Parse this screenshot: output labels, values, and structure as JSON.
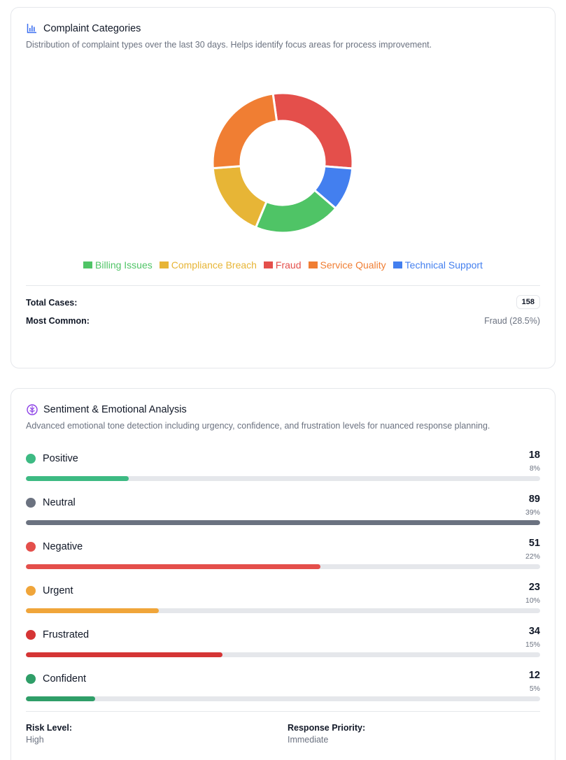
{
  "complaints": {
    "title": "Complaint Categories",
    "description": "Distribution of complaint types over the last 30 days. Helps identify focus areas for process improvement.",
    "icon": "bar-chart-icon",
    "total_label": "Total Cases:",
    "total_value": "158",
    "common_label": "Most Common:",
    "common_value": "Fraud (28.5%)",
    "legend": [
      {
        "label": "Billing Issues",
        "color": "#4fc466"
      },
      {
        "label": "Compliance Breach",
        "color": "#e7b536"
      },
      {
        "label": "Fraud",
        "color": "#e44f4b"
      },
      {
        "label": "Service Quality",
        "color": "#f07e33"
      },
      {
        "label": "Technical Support",
        "color": "#437fef"
      }
    ]
  },
  "chart_data": {
    "type": "pie",
    "categories": [
      "Billing Issues",
      "Compliance Breach",
      "Fraud",
      "Service Quality",
      "Technical Support"
    ],
    "values": [
      20,
      17.5,
      28.5,
      24,
      10
    ],
    "colors": [
      "#4fc466",
      "#e7b536",
      "#e44f4b",
      "#f07e33",
      "#437fef"
    ],
    "style": "donut",
    "legend_position": "bottom"
  },
  "sentiment": {
    "title": "Sentiment & Emotional Analysis",
    "description": "Advanced emotional tone detection including urgency, confidence, and frustration levels for nuanced response planning.",
    "icon": "brain-icon",
    "rows": [
      {
        "label": "Positive",
        "count": "18",
        "pct": "8%",
        "fill": 0.2,
        "color": "#3dba83"
      },
      {
        "label": "Neutral",
        "count": "89",
        "pct": "39%",
        "fill": 1.0,
        "color": "#6b7280"
      },
      {
        "label": "Negative",
        "count": "51",
        "pct": "22%",
        "fill": 0.573,
        "color": "#e44f4b"
      },
      {
        "label": "Urgent",
        "count": "23",
        "pct": "10%",
        "fill": 0.258,
        "color": "#f0a53a"
      },
      {
        "label": "Frustrated",
        "count": "34",
        "pct": "15%",
        "fill": 0.382,
        "color": "#d53535"
      },
      {
        "label": "Confident",
        "count": "12",
        "pct": "5%",
        "fill": 0.135,
        "color": "#2f9e68"
      }
    ],
    "risk_label": "Risk Level:",
    "risk_value": "High",
    "priority_label": "Response Priority:",
    "priority_value": "Immediate"
  }
}
